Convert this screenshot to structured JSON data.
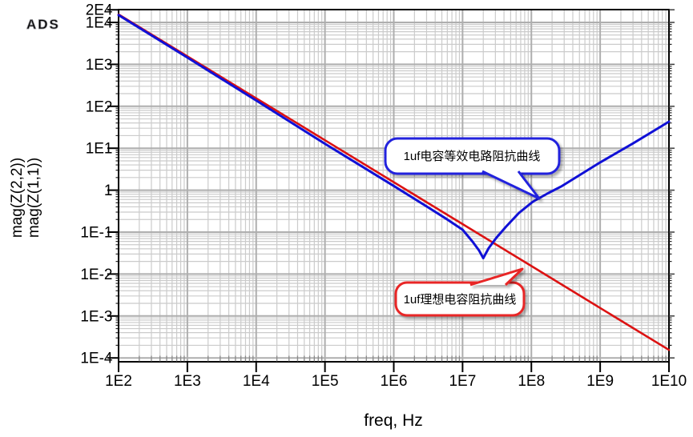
{
  "app": {
    "logo": "ADS"
  },
  "colors": {
    "blue_trace": "#1010d6",
    "red_trace": "#dc1212",
    "grid_minor": "#cbcbcb",
    "grid_major": "#aeaeae",
    "frame": "#000000",
    "callout_blue_border": "#2323dd",
    "callout_blue_text": "#3a46e0",
    "callout_red_border": "#e82525",
    "callout_red_text": "#e83434"
  },
  "y_axis_label": {
    "line1": "mag(Z(2,2))",
    "line2": "mag(Z(1,1))"
  },
  "x_axis_title": "freq, Hz",
  "callouts": {
    "blue": {
      "text": "1uf电容等效电路阻抗曲线"
    },
    "red": {
      "text": "1uf理想电容阻抗曲线"
    }
  },
  "chart_data": {
    "type": "line",
    "title": "",
    "xlabel": "freq, Hz",
    "ylabel": "mag(Z(2,2)) / mag(Z(1,1))",
    "x_axis": {
      "scale": "log",
      "min": 100.0,
      "max": 10000000000.0,
      "ticks": [
        {
          "value": 100.0,
          "label": "1E2"
        },
        {
          "value": 1000.0,
          "label": "1E3"
        },
        {
          "value": 10000.0,
          "label": "1E4"
        },
        {
          "value": 100000.0,
          "label": "1E5"
        },
        {
          "value": 1000000.0,
          "label": "1E6"
        },
        {
          "value": 10000000.0,
          "label": "1E7"
        },
        {
          "value": 100000000.0,
          "label": "1E8"
        },
        {
          "value": 1000000000.0,
          "label": "1E9"
        },
        {
          "value": 10000000000.0,
          "label": "1E10"
        }
      ]
    },
    "y_axis": {
      "scale": "log",
      "min": 8e-05,
      "max": 20000.0,
      "ticks": [
        {
          "value": 20000.0,
          "label": "2E4"
        },
        {
          "value": 10000.0,
          "label": "1E4"
        },
        {
          "value": 1000.0,
          "label": "1E3"
        },
        {
          "value": 100.0,
          "label": "1E2"
        },
        {
          "value": 10.0,
          "label": "1E1"
        },
        {
          "value": 1,
          "label": "1"
        },
        {
          "value": 0.1,
          "label": "1E-1"
        },
        {
          "value": 0.01,
          "label": "1E-2"
        },
        {
          "value": 0.001,
          "label": "1E-3"
        },
        {
          "value": 0.0001,
          "label": "1E-4"
        }
      ]
    },
    "grid": true,
    "legend_position": "none",
    "series": [
      {
        "name": "mag(Z(1,1))",
        "description": "1uf理想电容阻抗曲线 (ideal capacitor, slope -1)",
        "color": "#dc1212",
        "width": 2.6,
        "points": [
          [
            100.0,
            15500
          ],
          [
            1000.0,
            1550
          ],
          [
            10000.0,
            155
          ],
          [
            100000.0,
            15.5
          ],
          [
            1000000.0,
            1.55
          ],
          [
            10000000.0,
            0.155
          ],
          [
            100000000.0,
            0.0155
          ],
          [
            1000000000.0,
            0.00155
          ],
          [
            10000000000.0,
            0.000155
          ]
        ]
      },
      {
        "name": "mag(Z(2,2))",
        "description": "1uf电容等效电路阻抗曲线 (equivalent circuit, series resonance ~2E7 Hz, min ~0.024 ohm)",
        "color": "#1010d6",
        "width": 3,
        "points": [
          [
            100.0,
            15000
          ],
          [
            1000.0,
            1450
          ],
          [
            10000.0,
            138
          ],
          [
            100000.0,
            12.8
          ],
          [
            1000000.0,
            1.26
          ],
          [
            3000000.0,
            0.41
          ],
          [
            6000000.0,
            0.2
          ],
          [
            10000000.0,
            0.114
          ],
          [
            14000000.0,
            0.059
          ],
          [
            17400000.0,
            0.0364
          ],
          [
            20000000.0,
            0.024
          ],
          [
            24000000.0,
            0.0415
          ],
          [
            31000000.0,
            0.0735
          ],
          [
            43000000.0,
            0.136
          ],
          [
            66000000.0,
            0.287
          ],
          [
            105000000.0,
            0.53
          ],
          [
            178000000.0,
            0.86
          ],
          [
            270000000.0,
            1.22
          ],
          [
            1000000000.0,
            4.6
          ],
          [
            3000000000.0,
            13
          ],
          [
            10000000000.0,
            43
          ]
        ]
      }
    ]
  }
}
